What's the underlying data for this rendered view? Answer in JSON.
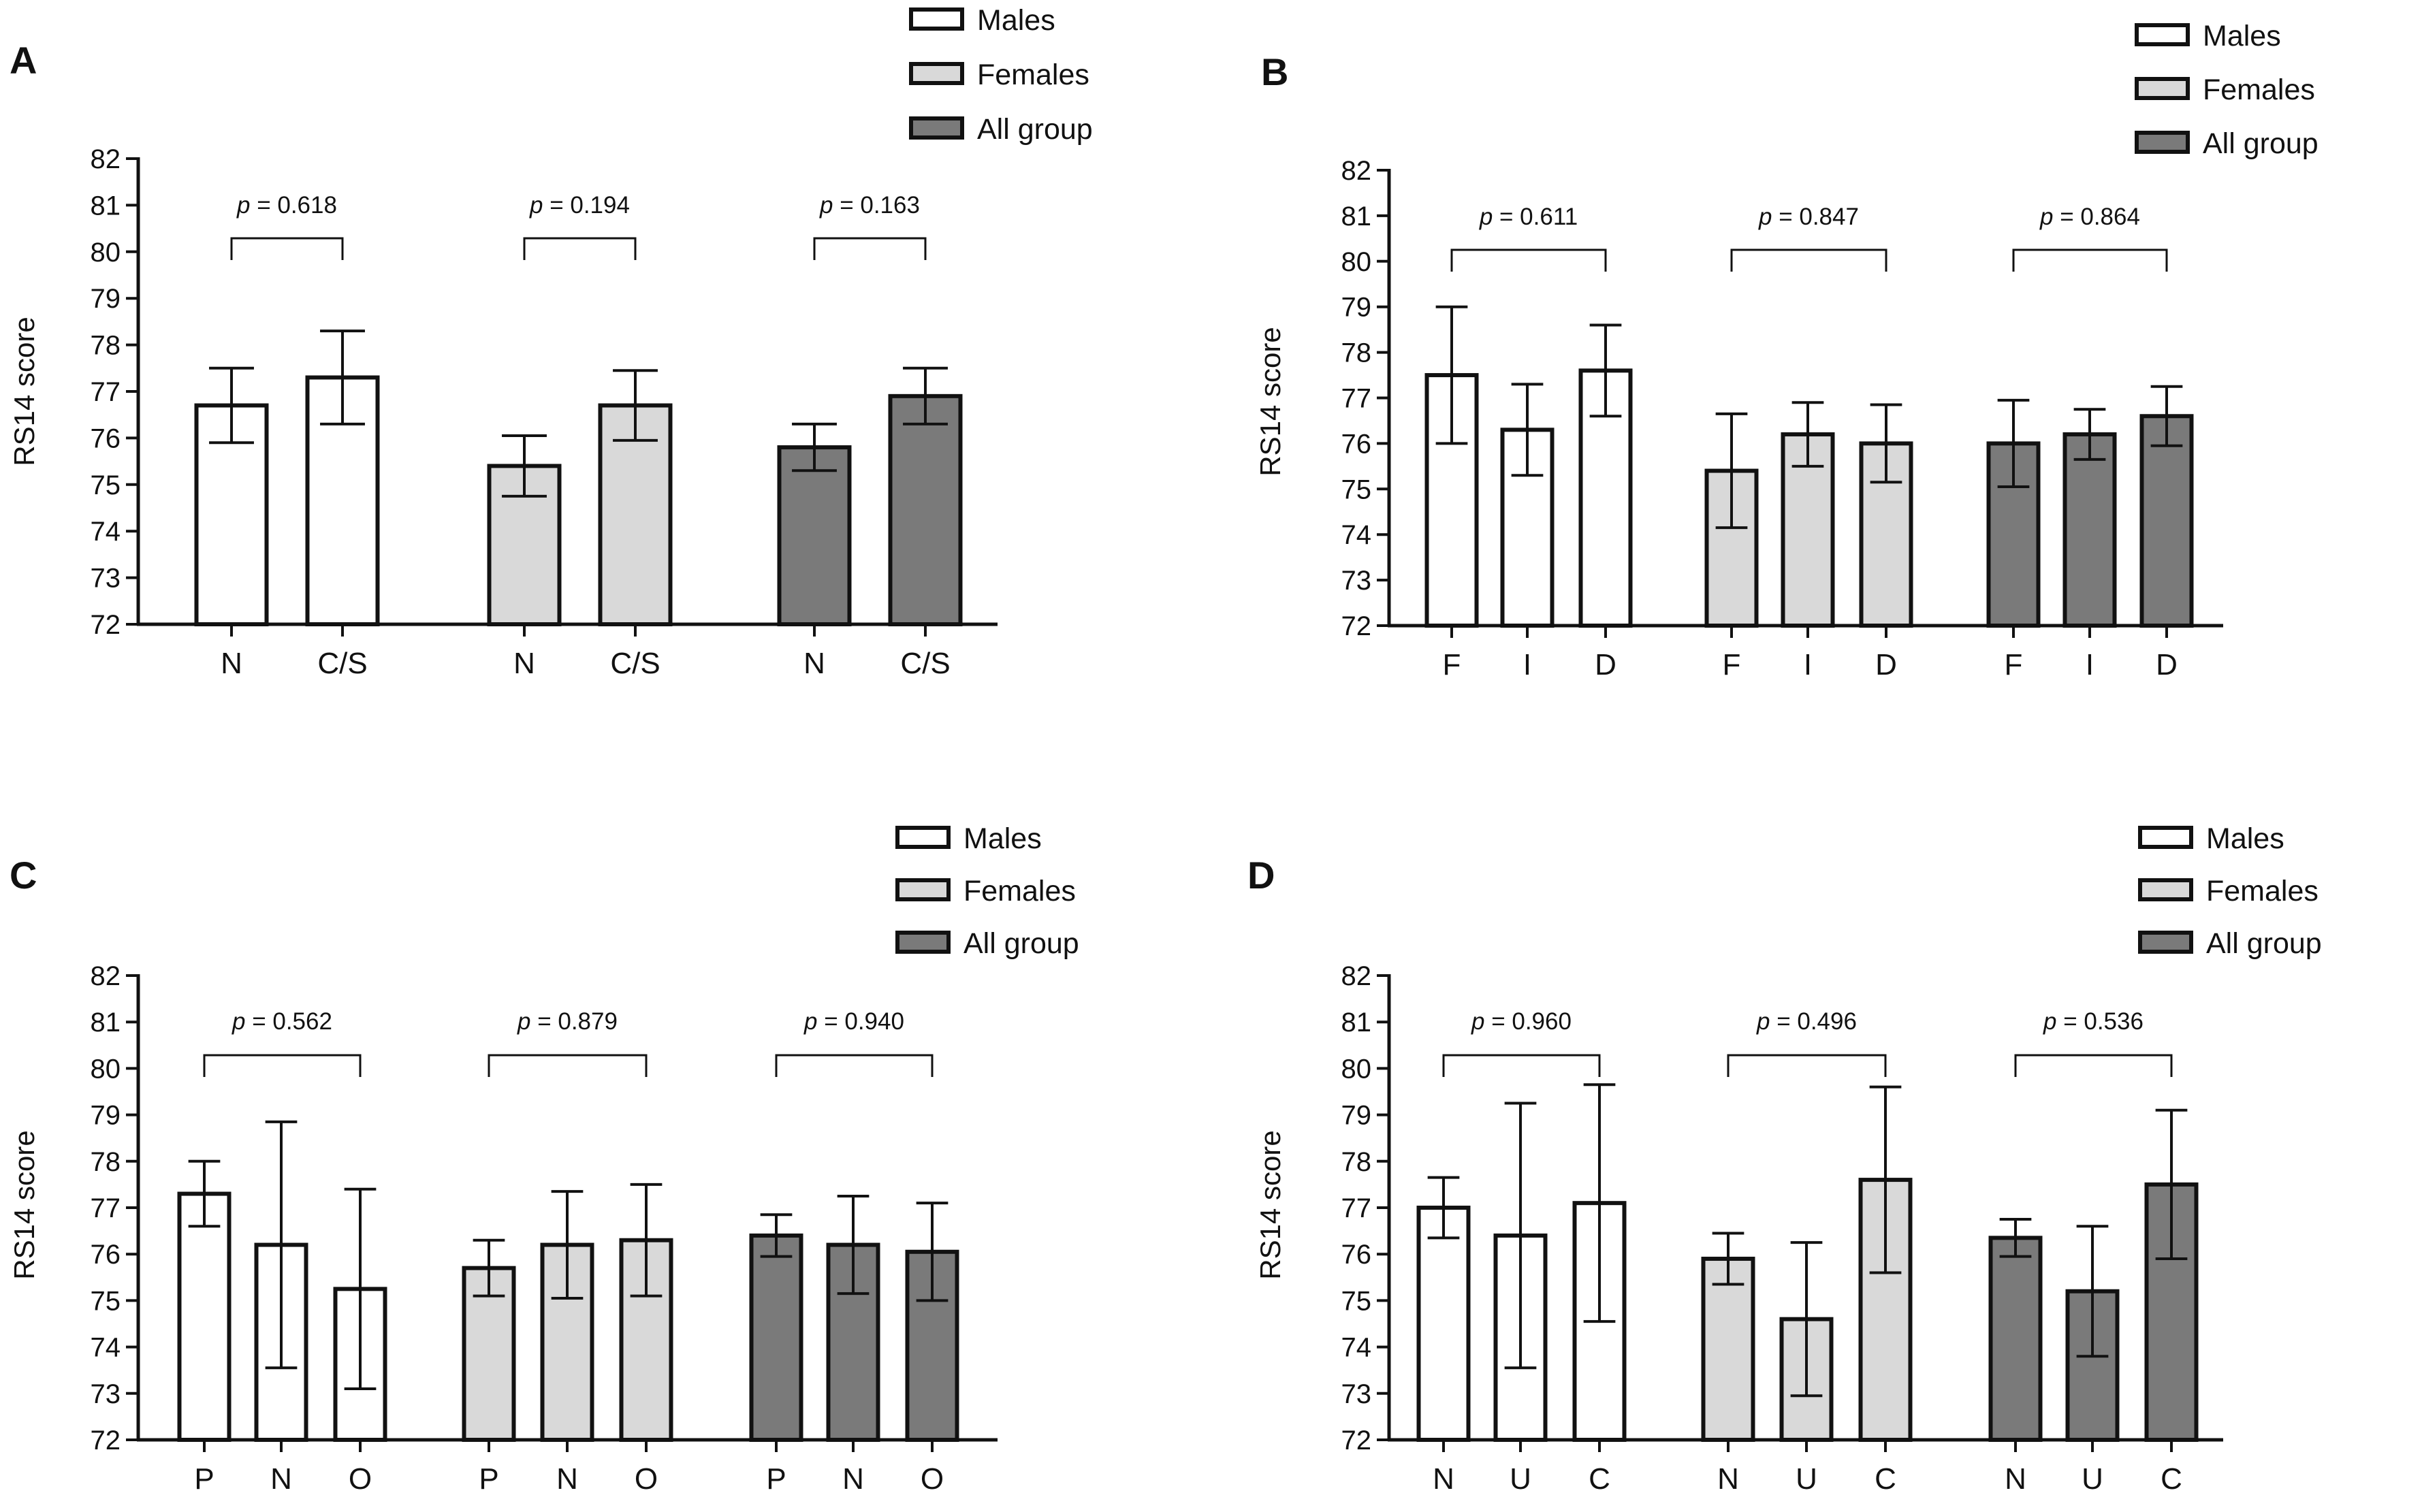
{
  "figure": {
    "type": "grouped bar charts with error bars",
    "legend": [
      "Males",
      "Females",
      "All group"
    ]
  },
  "colors": {
    "Males": "#ffffff",
    "Females": "#d9d9d9",
    "All group": "#7a7a7a",
    "stroke": "#111111"
  },
  "chart_data": [
    {
      "panel": "A",
      "type": "bar",
      "title": "",
      "xlabel": "",
      "ylabel": "RS14 score",
      "ylim": [
        72,
        82
      ],
      "yticks": [
        72,
        73,
        74,
        75,
        76,
        77,
        78,
        79,
        80,
        81,
        82
      ],
      "legend": [
        "Males",
        "Females",
        "All group"
      ],
      "legend_position": "top-right",
      "groups": [
        {
          "name": "Males",
          "categories": [
            "N",
            "C/S"
          ],
          "values": [
            76.7,
            77.3
          ],
          "errors": [
            0.8,
            1.0
          ],
          "p_value": "0.618"
        },
        {
          "name": "Females",
          "categories": [
            "N",
            "C/S"
          ],
          "values": [
            75.4,
            76.7
          ],
          "errors": [
            0.65,
            0.75
          ],
          "p_value": "0.194"
        },
        {
          "name": "All group",
          "categories": [
            "N",
            "C/S"
          ],
          "values": [
            75.8,
            76.9
          ],
          "errors": [
            0.5,
            0.6
          ],
          "p_value": "0.163"
        }
      ]
    },
    {
      "panel": "B",
      "type": "bar",
      "title": "",
      "xlabel": "",
      "ylabel": "RS14 score",
      "ylim": [
        72,
        82
      ],
      "yticks": [
        72,
        73,
        74,
        75,
        76,
        77,
        78,
        79,
        80,
        81,
        82
      ],
      "legend": [
        "Males",
        "Females",
        "All group"
      ],
      "legend_position": "top-right",
      "groups": [
        {
          "name": "Males",
          "categories": [
            "F",
            "I",
            "D"
          ],
          "values": [
            77.5,
            76.3,
            77.6
          ],
          "errors": [
            1.5,
            1.0,
            1.0
          ],
          "p_value": "0.611"
        },
        {
          "name": "Females",
          "categories": [
            "F",
            "I",
            "D"
          ],
          "values": [
            75.4,
            76.2,
            76.0
          ],
          "errors": [
            1.25,
            0.7,
            0.85
          ],
          "p_value": "0.847"
        },
        {
          "name": "All group",
          "categories": [
            "F",
            "I",
            "D"
          ],
          "values": [
            76.0,
            76.2,
            76.6
          ],
          "errors": [
            0.95,
            0.55,
            0.65
          ],
          "p_value": "0.864"
        }
      ]
    },
    {
      "panel": "C",
      "type": "bar",
      "title": "",
      "xlabel": "",
      "ylabel": "RS14 score",
      "ylim": [
        72,
        82
      ],
      "yticks": [
        72,
        73,
        74,
        75,
        76,
        77,
        78,
        79,
        80,
        81,
        82
      ],
      "legend": [
        "Males",
        "Females",
        "All group"
      ],
      "legend_position": "top-right",
      "groups": [
        {
          "name": "Males",
          "categories": [
            "P",
            "N",
            "O"
          ],
          "values": [
            77.3,
            76.2,
            75.25
          ],
          "errors": [
            0.7,
            2.65,
            2.15
          ],
          "p_value": "0.562"
        },
        {
          "name": "Females",
          "categories": [
            "P",
            "N",
            "O"
          ],
          "values": [
            75.7,
            76.2,
            76.3
          ],
          "errors": [
            0.6,
            1.15,
            1.2
          ],
          "p_value": "0.879"
        },
        {
          "name": "All group",
          "categories": [
            "P",
            "N",
            "O"
          ],
          "values": [
            76.4,
            76.2,
            76.05
          ],
          "errors": [
            0.45,
            1.05,
            1.05
          ],
          "p_value": "0.940"
        }
      ]
    },
    {
      "panel": "D",
      "type": "bar",
      "title": "",
      "xlabel": "",
      "ylabel": "RS14 score",
      "ylim": [
        72,
        82
      ],
      "yticks": [
        72,
        73,
        74,
        75,
        76,
        77,
        78,
        79,
        80,
        81,
        82
      ],
      "legend": [
        "Males",
        "Females",
        "All group"
      ],
      "legend_position": "top-right",
      "groups": [
        {
          "name": "Males",
          "categories": [
            "N",
            "U",
            "C"
          ],
          "values": [
            77.0,
            76.4,
            77.1
          ],
          "errors": [
            0.65,
            2.85,
            2.55
          ],
          "p_value": "0.960"
        },
        {
          "name": "Females",
          "categories": [
            "N",
            "U",
            "C"
          ],
          "values": [
            75.9,
            74.6,
            77.6
          ],
          "errors": [
            0.55,
            1.65,
            2.0
          ],
          "p_value": "0.496"
        },
        {
          "name": "All group",
          "categories": [
            "N",
            "U",
            "C"
          ],
          "values": [
            76.35,
            75.2,
            77.5
          ],
          "errors": [
            0.4,
            1.4,
            1.6
          ],
          "p_value": "0.536"
        }
      ]
    }
  ]
}
